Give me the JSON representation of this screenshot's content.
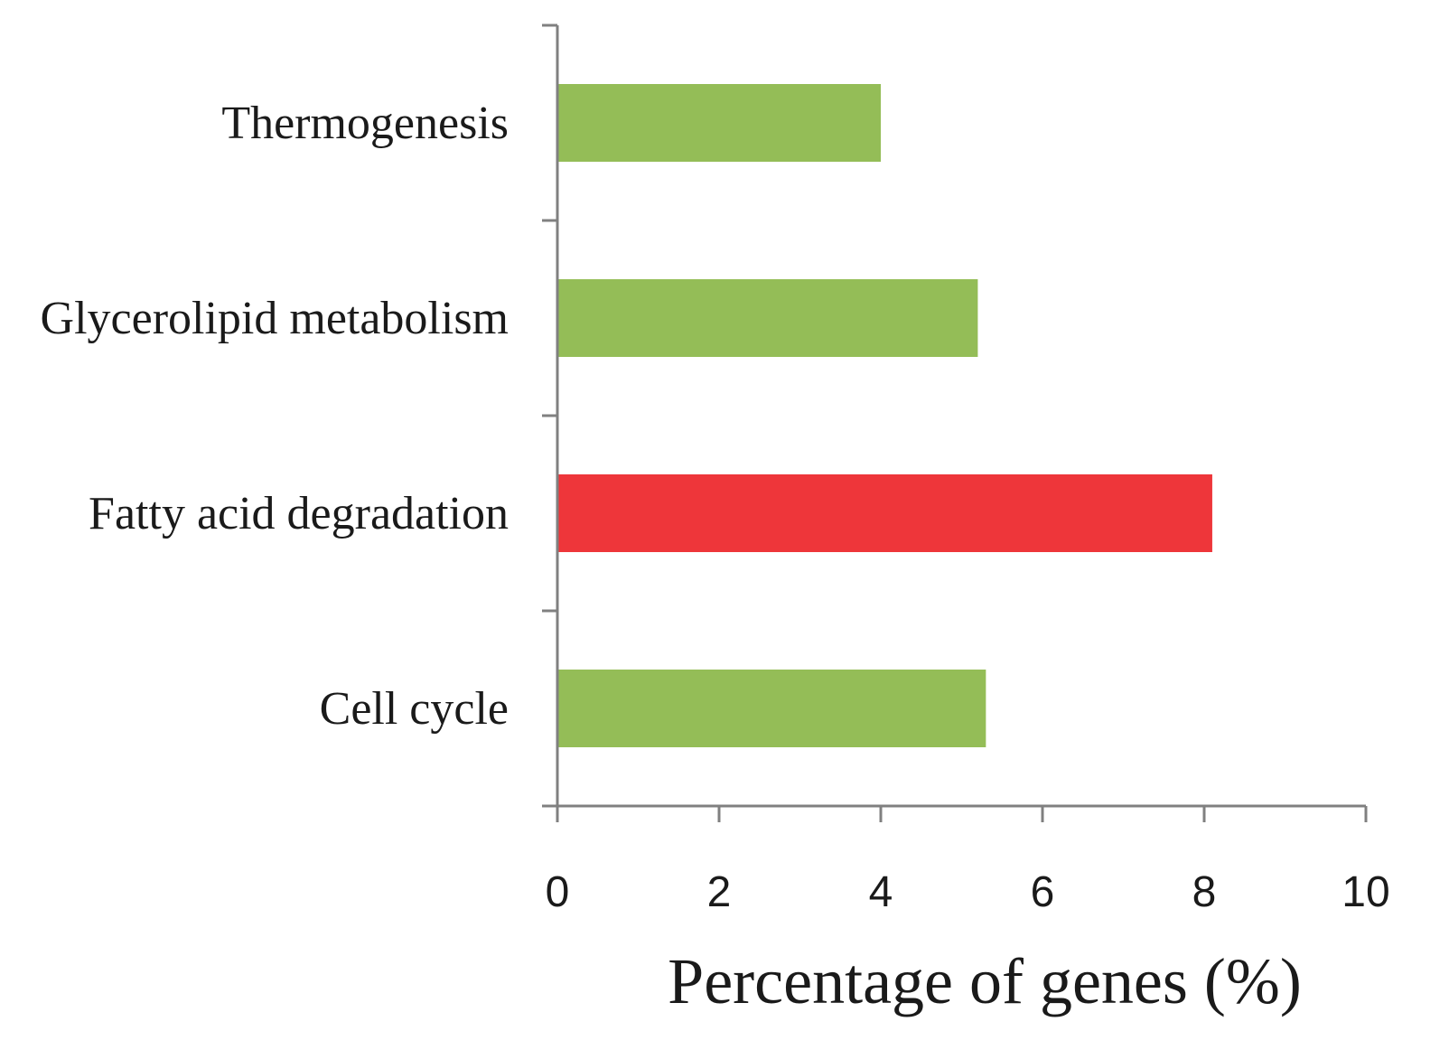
{
  "chart_data": {
    "type": "bar",
    "orientation": "horizontal",
    "categories": [
      "Thermogenesis",
      "Glycerolipid metabolism",
      "Fatty acid degradation",
      "Cell cycle"
    ],
    "values": [
      4.0,
      5.2,
      8.1,
      5.3
    ],
    "colors": [
      "#94bd57",
      "#94bd57",
      "#ee363a",
      "#94bd57"
    ],
    "xlabel": "Percentage of genes (%)",
    "ylabel": "",
    "xlim": [
      0,
      10
    ],
    "xticks": [
      0,
      2,
      4,
      6,
      8,
      10
    ],
    "grid": false,
    "axis_color": "#808080"
  }
}
